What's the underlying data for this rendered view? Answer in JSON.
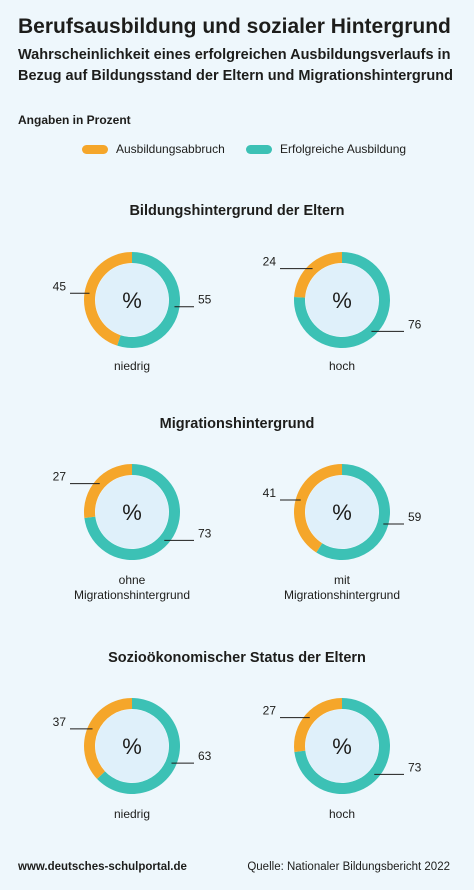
{
  "header": {
    "title": "Berufsausbildung und sozialer Hintergrund",
    "subtitle": "Wahrscheinlichkeit eines erfolgreichen Ausbildungsverlaufs in Bezug auf Bildungsstand der Eltern und Migrationshintergrund",
    "unit_note": "Angaben in Prozent"
  },
  "legend": [
    {
      "label": "Ausbildungsabbruch",
      "color": "#f5a62a"
    },
    {
      "label": "Erfolgreiche Ausbildung",
      "color": "#3cc1b5"
    }
  ],
  "donut_center_label": "%",
  "chart_data": [
    {
      "type": "pie",
      "title": "Bildungshintergrund der Eltern",
      "series": [
        {
          "name": "Ausbildungsabbruch",
          "values": [
            45,
            24
          ]
        },
        {
          "name": "Erfolgreiche Ausbildung",
          "values": [
            55,
            76
          ]
        }
      ],
      "categories": [
        "niedrig",
        "hoch"
      ],
      "category_lines": [
        [
          "niedrig"
        ],
        [
          "hoch"
        ]
      ]
    },
    {
      "type": "pie",
      "title": "Migrationshintergrund",
      "series": [
        {
          "name": "Ausbildungsabbruch",
          "values": [
            27,
            41
          ]
        },
        {
          "name": "Erfolgreiche Ausbildung",
          "values": [
            73,
            59
          ]
        }
      ],
      "categories": [
        "ohne Migrationshintergrund",
        "mit Migrationshintergrund"
      ],
      "category_lines": [
        [
          "ohne",
          "Migrationshintergrund"
        ],
        [
          "mit",
          "Migrationshintergrund"
        ]
      ]
    },
    {
      "type": "pie",
      "title": "Sozioökonomischer Status der Eltern",
      "series": [
        {
          "name": "Ausbildungsabbruch",
          "values": [
            37,
            27
          ]
        },
        {
          "name": "Erfolgreiche Ausbildung",
          "values": [
            63,
            73
          ]
        }
      ],
      "categories": [
        "niedrig",
        "hoch"
      ],
      "category_lines": [
        [
          "niedrig"
        ],
        [
          "hoch"
        ]
      ]
    }
  ],
  "footer": {
    "website": "www.deutsches-schulportal.de",
    "source": "Quelle: Nationaler Bildungsbericht 2022"
  }
}
